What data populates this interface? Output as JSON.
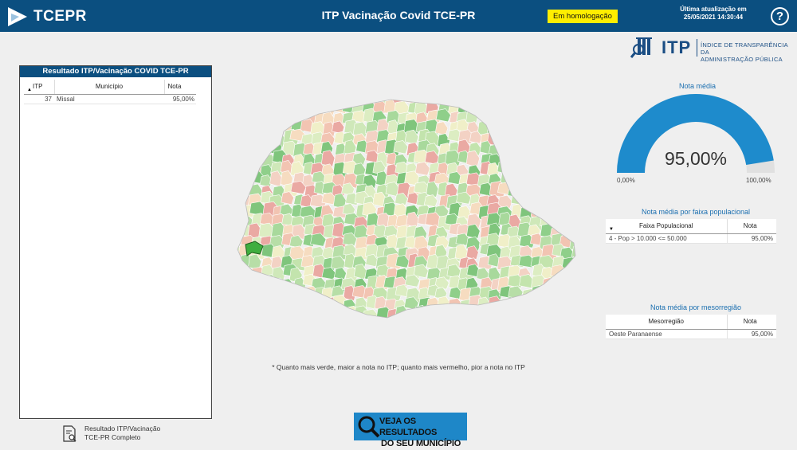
{
  "header": {
    "logo_text": "TCEPR",
    "title": "ITP Vacinação Covid TCE-PR",
    "badge": "Em homologação",
    "update_label": "Última atualização em",
    "update_time": "25/05/2021 14:30:44",
    "help_label": "?"
  },
  "itp_brand": {
    "word": "ITP",
    "line1": "ÍNDICE DE TRANSPARÊNCIA DA",
    "line2": "ADMINISTRAÇÃO PÚBLICA"
  },
  "result_table": {
    "title": "Resultado ITP/Vacinação COVID TCE-PR",
    "columns": [
      "ITP",
      "Município",
      "Nota"
    ],
    "rows": [
      {
        "itp": "37",
        "municipio": "Missal",
        "nota": "95,00%"
      }
    ]
  },
  "report_link": {
    "line1": "Resultado ITP/Vacinação",
    "line2": "TCE-PR Completo"
  },
  "map": {
    "note": "* Quanto mais verde, maior a nota no ITP; quanto mais vermelho, pior a nota no ITP",
    "highlight_color": "#3fae3f"
  },
  "cta": {
    "line1": "VEJA OS RESULTADOS",
    "line2": "DO SEU MUNICÍPIO"
  },
  "gauge": {
    "title": "Nota média",
    "value": "95,00%",
    "fraction": 0.95,
    "min": "0,00%",
    "max": "100,00%",
    "fill_color": "#1e8bcc",
    "track_color": "#e0e0e0"
  },
  "faixa_table": {
    "title": "Nota média por faixa populacional",
    "columns": [
      "Faixa Populacional",
      "Nota"
    ],
    "rows": [
      {
        "faixa": "4 - Pop > 10.000 <= 50.000",
        "nota": "95,00%"
      }
    ]
  },
  "meso_table": {
    "title": "Nota média por mesorregião",
    "columns": [
      "Mesorregião",
      "Nota"
    ],
    "rows": [
      {
        "meso": "Oeste Paranaense",
        "nota": "95,00%"
      }
    ]
  },
  "colors": {
    "header_bg": "#0b4f80",
    "badge_bg": "#ffee00",
    "accent": "#1e8bcc"
  }
}
